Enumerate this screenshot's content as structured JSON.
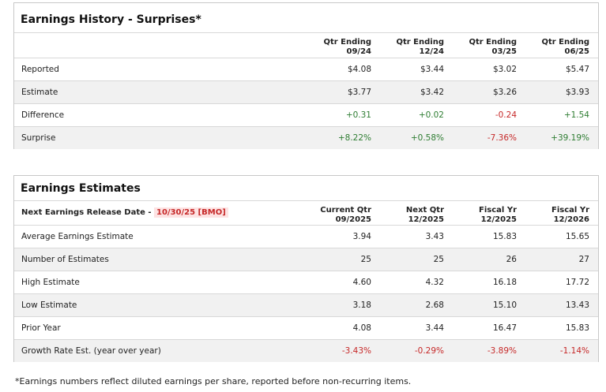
{
  "history": {
    "title": "Earnings History - Surprises*",
    "columns": [
      [
        "Qtr Ending",
        "09/24"
      ],
      [
        "Qtr Ending",
        "12/24"
      ],
      [
        "Qtr Ending",
        "03/25"
      ],
      [
        "Qtr Ending",
        "06/25"
      ]
    ],
    "rows": [
      {
        "label": "Reported",
        "values": [
          "$4.08",
          "$3.44",
          "$3.02",
          "$5.47"
        ]
      },
      {
        "label": "Estimate",
        "values": [
          "$3.77",
          "$3.42",
          "$3.26",
          "$3.93"
        ]
      },
      {
        "label": "Difference",
        "values": [
          "+0.31",
          "+0.02",
          "-0.24",
          "+1.54"
        ]
      },
      {
        "label": "Surprise",
        "values": [
          "+8.22%",
          "+0.58%",
          "-7.36%",
          "+39.19%"
        ]
      }
    ]
  },
  "estimates": {
    "title": "Earnings Estimates",
    "release_label": "Next Earnings Release Date -",
    "release_date": "10/30/25 [BMO]",
    "columns": [
      [
        "Current Qtr",
        "09/2025"
      ],
      [
        "Next Qtr",
        "12/2025"
      ],
      [
        "Fiscal Yr",
        "12/2025"
      ],
      [
        "Fiscal Yr",
        "12/2026"
      ]
    ],
    "rows": [
      {
        "label": "Average Earnings Estimate",
        "values": [
          "3.94",
          "3.43",
          "15.83",
          "15.65"
        ]
      },
      {
        "label": "Number of Estimates",
        "values": [
          "25",
          "25",
          "26",
          "27"
        ]
      },
      {
        "label": "High Estimate",
        "values": [
          "4.60",
          "4.32",
          "16.18",
          "17.72"
        ]
      },
      {
        "label": "Low Estimate",
        "values": [
          "3.18",
          "2.68",
          "15.10",
          "13.43"
        ]
      },
      {
        "label": "Prior Year",
        "values": [
          "4.08",
          "3.44",
          "16.47",
          "15.83"
        ]
      },
      {
        "label": "Growth Rate Est. (year over year)",
        "values": [
          "-3.43%",
          "-0.29%",
          "-3.89%",
          "-1.14%"
        ]
      }
    ]
  },
  "footnote": "*Earnings numbers reflect diluted earnings per share, reported before non-recurring items."
}
